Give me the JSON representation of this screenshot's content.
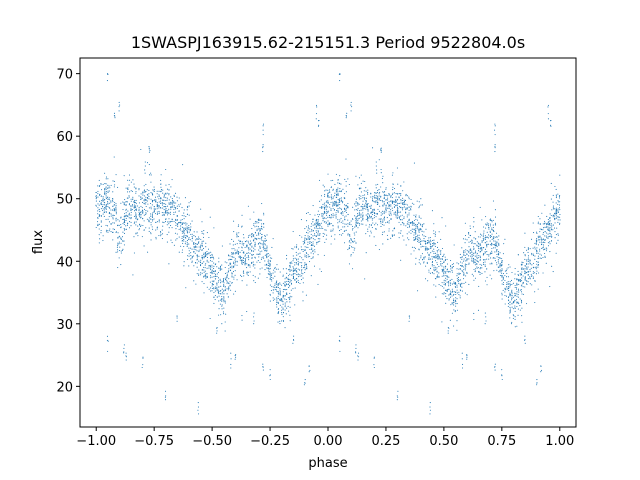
{
  "chart_data": {
    "type": "scatter",
    "title": "1SWASPJ163915.62-215151.3 Period 9522804.0s",
    "xlabel": "phase",
    "ylabel": "flux",
    "xlim": [
      -1.07,
      1.07
    ],
    "ylim": [
      13.5,
      72.5
    ],
    "xticks": [
      -1.0,
      -0.75,
      -0.5,
      -0.25,
      0.0,
      0.25,
      0.5,
      0.75,
      1.0
    ],
    "xtick_labels": [
      "−1.00",
      "−0.75",
      "−0.50",
      "−0.25",
      "0.00",
      "0.25",
      "0.50",
      "0.75",
      "1.00"
    ],
    "yticks": [
      20,
      30,
      40,
      50,
      60,
      70
    ],
    "ytick_labels": [
      "20",
      "30",
      "40",
      "50",
      "60",
      "70"
    ],
    "grid": false,
    "legend": "none",
    "marker_color": "#1f77b4",
    "series": [
      {
        "profile_x": [
          0.0,
          0.02,
          0.05,
          0.08,
          0.1,
          0.13,
          0.15,
          0.18,
          0.2,
          0.22,
          0.25,
          0.28,
          0.3,
          0.33,
          0.35,
          0.38,
          0.4,
          0.42,
          0.45,
          0.48,
          0.5,
          0.52,
          0.55,
          0.58,
          0.6,
          0.62,
          0.65,
          0.68,
          0.7,
          0.72,
          0.75,
          0.78,
          0.8,
          0.82,
          0.85,
          0.88,
          0.9,
          0.92,
          0.95,
          0.98,
          1.0
        ],
        "profile_y": [
          48.5,
          49.0,
          49.5,
          48.0,
          43.0,
          48.5,
          49.0,
          47.5,
          48.5,
          49.0,
          48.0,
          49.0,
          48.5,
          48.0,
          46.5,
          45.0,
          44.0,
          42.5,
          41.0,
          39.5,
          38.0,
          36.5,
          35.5,
          38.5,
          40.0,
          42.0,
          40.5,
          43.0,
          43.5,
          44.0,
          38.0,
          35.0,
          33.5,
          36.0,
          38.5,
          39.5,
          41.0,
          43.0,
          45.0,
          47.5,
          48.5
        ],
        "scatter_spread": 3.5,
        "n_points": 2200,
        "outliers": [
          {
            "x": 0.08,
            "y": 63.0
          },
          {
            "x": 0.1,
            "y": 64.5
          },
          {
            "x": 0.21,
            "y": 55.0
          },
          {
            "x": 0.23,
            "y": 57.5
          },
          {
            "x": 0.28,
            "y": 52.0
          },
          {
            "x": 0.72,
            "y": 61.5
          },
          {
            "x": 0.72,
            "y": 58.0
          },
          {
            "x": 0.95,
            "y": 64.0
          },
          {
            "x": 0.96,
            "y": 62.0
          },
          {
            "x": 0.05,
            "y": 70.0
          },
          {
            "x": 0.12,
            "y": 26.0
          },
          {
            "x": 0.13,
            "y": 24.5
          },
          {
            "x": 0.2,
            "y": 24.0
          },
          {
            "x": 0.3,
            "y": 18.5
          },
          {
            "x": 0.44,
            "y": 16.5
          },
          {
            "x": 0.58,
            "y": 24.0
          },
          {
            "x": 0.6,
            "y": 24.5
          },
          {
            "x": 0.72,
            "y": 23.0
          },
          {
            "x": 0.75,
            "y": 22.5
          },
          {
            "x": 0.85,
            "y": 27.5
          },
          {
            "x": 0.9,
            "y": 20.5
          },
          {
            "x": 0.92,
            "y": 22.0
          },
          {
            "x": 0.05,
            "y": 27.0
          },
          {
            "x": 0.52,
            "y": 29.0
          },
          {
            "x": 0.68,
            "y": 30.0
          },
          {
            "x": 0.35,
            "y": 31.0
          }
        ]
      }
    ]
  }
}
